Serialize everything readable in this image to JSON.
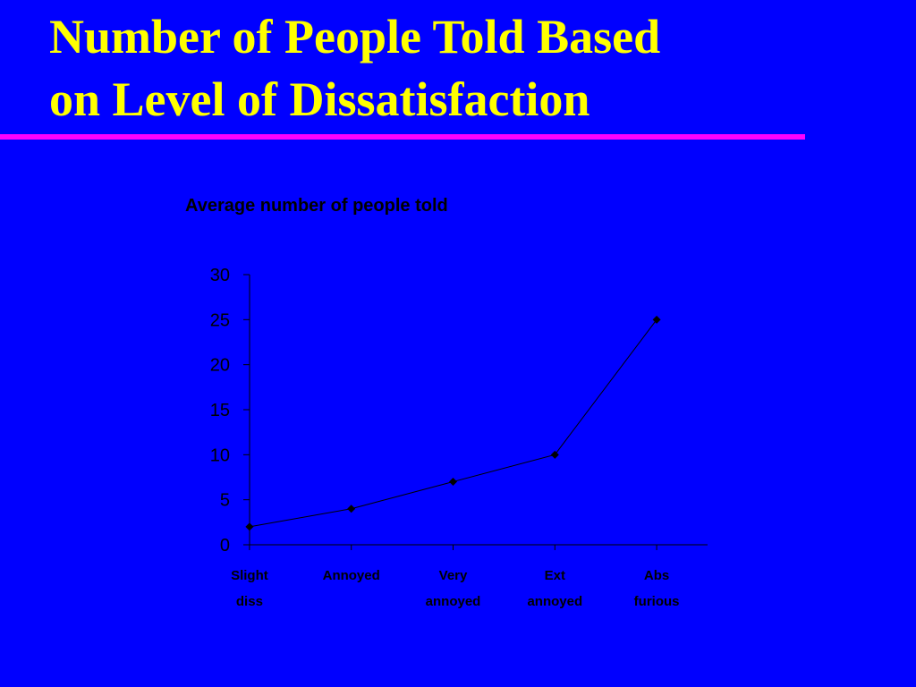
{
  "slide": {
    "title_line1": "Number of People Told Based",
    "title_line2": "on Level of Dissatisfaction"
  },
  "colors": {
    "background": "#0000ff",
    "title": "#ffff00",
    "rule": "#ff00ff",
    "chart_ink": "#000000"
  },
  "chart_data": {
    "type": "line",
    "title": "Average number of people told",
    "xlabel": "",
    "ylabel": "",
    "categories": [
      [
        "Slight",
        "diss"
      ],
      [
        "Annoyed"
      ],
      [
        "Very",
        "annoyed"
      ],
      [
        "Ext",
        "annoyed"
      ],
      [
        "Abs",
        "furious"
      ]
    ],
    "series": [
      {
        "values": [
          2,
          4,
          7,
          10,
          25
        ]
      }
    ],
    "ylim": [
      0,
      30
    ],
    "yticks": [
      0,
      5,
      10,
      15,
      20,
      25,
      30
    ],
    "grid": false,
    "legend": "none",
    "marker": "diamond"
  }
}
